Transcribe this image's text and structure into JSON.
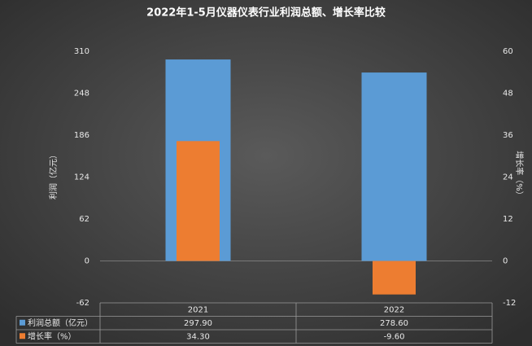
{
  "chart_data": {
    "type": "bar",
    "title": "2022年1-5月仪器仪表行业利润总额、增长率比较",
    "y_label": "利润（亿元）",
    "y2_label": "增长率（%）",
    "categories": [
      "2021",
      "2022"
    ],
    "series": [
      {
        "name": "利润总额（亿元）",
        "color": "#5b9bd5",
        "values": [
          297.9,
          278.6
        ],
        "value_labels": [
          "297.90",
          "278.60"
        ]
      },
      {
        "name": "增长率（%）",
        "color": "#ed7d31",
        "axis": "y2",
        "values": [
          34.3,
          -9.6
        ],
        "value_labels": [
          "34.30",
          "-9.60"
        ]
      }
    ],
    "ylim": [
      -62,
      310
    ],
    "yticks": [
      -62,
      0,
      62,
      124,
      186,
      248,
      310
    ],
    "y2lim": [
      -12,
      60
    ],
    "y2ticks": [
      -12,
      0,
      12,
      24,
      36,
      48,
      60
    ]
  }
}
